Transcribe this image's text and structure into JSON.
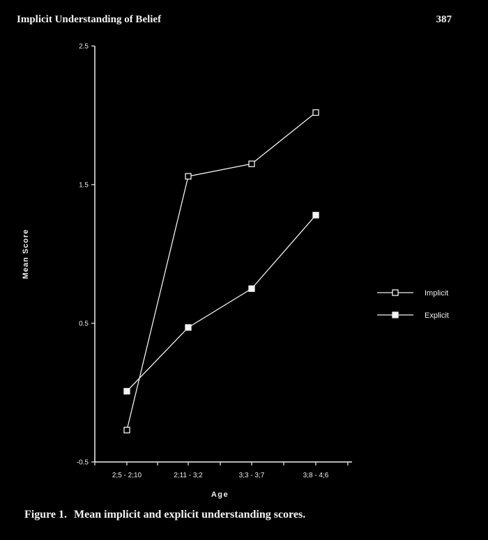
{
  "header": {
    "running_title": "Implicit Understanding of Belief",
    "page_number": "387"
  },
  "caption": {
    "label": "Figure 1.",
    "text": "Mean implicit and explicit understanding scores."
  },
  "chart_data": {
    "type": "line",
    "title": "",
    "xlabel": "Age",
    "ylabel": "Mean Score",
    "categories": [
      "2;5 - 2;10",
      "2;11 - 3;2",
      "3;3 - 3;7",
      "3;8 - 4;6"
    ],
    "ylim": [
      -0.5,
      2.5
    ],
    "yticks": [
      -0.5,
      0.5,
      1.5,
      2.5
    ],
    "ytick_labels": [
      "-0.5",
      "0.5",
      "1.5",
      "2.5"
    ],
    "grid": false,
    "legend_position": "right",
    "series": [
      {
        "name": "Implicit",
        "marker": "open-square",
        "values": [
          -0.27,
          1.56,
          1.65,
          2.02
        ]
      },
      {
        "name": "Explicit",
        "marker": "filled-square",
        "values": [
          0.01,
          0.47,
          0.75,
          1.28
        ]
      }
    ],
    "colors": {
      "background": "#000000",
      "foreground": "#f2f2f2"
    }
  }
}
